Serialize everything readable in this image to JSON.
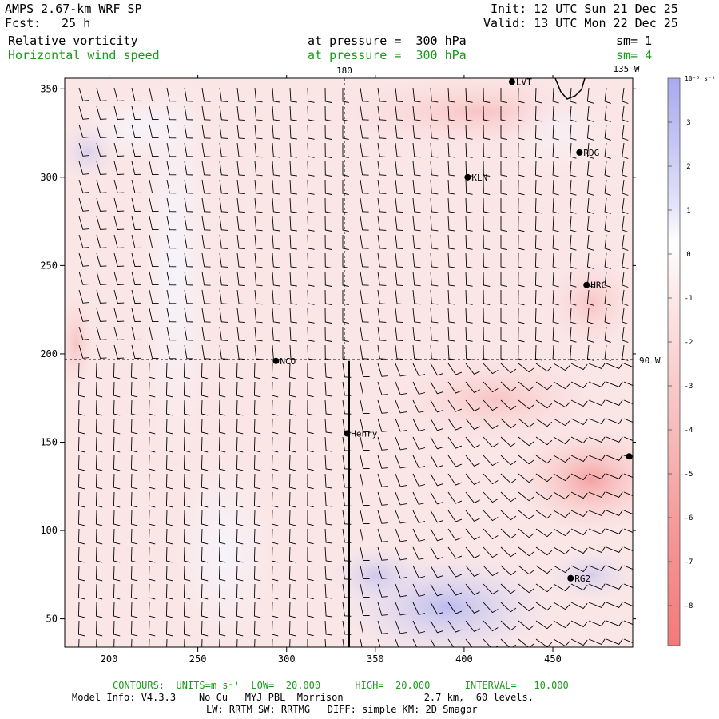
{
  "header": {
    "model": "AMPS 2.67-km WRF SP",
    "fcst_label": "Fcst:",
    "fcst_hours": "25 h",
    "init": "Init: 12 UTC Sun 21 Dec 25",
    "valid": "Valid: 13 UTC Mon 22 Dec 25",
    "field1_name": "Relative vorticity",
    "field1_level": "at pressure =  300 hPa",
    "field1_sm": "sm= 1",
    "field2_name": "Horizontal wind speed",
    "field2_level": "at pressure =  300 hPa",
    "field2_sm": "sm= 4"
  },
  "map": {
    "x_ticks": [
      200,
      250,
      300,
      350,
      400,
      450
    ],
    "y_ticks": [
      50,
      100,
      150,
      200,
      250,
      300,
      350
    ],
    "x_range": [
      175,
      495
    ],
    "y_range": [
      34,
      356
    ],
    "lon_label_180": "180",
    "lon_label_135w": "135 W",
    "lat_label_90w": "90 W",
    "cross_section_x": 335,
    "cross_section_y": [
      34,
      196
    ],
    "stations": [
      {
        "name": "NCO",
        "x": 294,
        "y": 196
      },
      {
        "name": "Henry",
        "x": 334,
        "y": 155
      },
      {
        "name": "KLN",
        "x": 402,
        "y": 300
      },
      {
        "name": "RDG",
        "x": 465,
        "y": 314
      },
      {
        "name": "HRC",
        "x": 469,
        "y": 239
      },
      {
        "name": "RG2",
        "x": 460,
        "y": 73
      },
      {
        "name": "LVT",
        "x": 427,
        "y": 354
      },
      {
        "name": "",
        "x": 493,
        "y": 142
      }
    ]
  },
  "colorbar": {
    "unit_label": "10⁻⁵ s⁻¹",
    "levels": [
      "3",
      "2",
      "1",
      "0",
      "-1",
      "-2",
      "-3",
      "-4",
      "-5",
      "-6",
      "-7",
      "-8"
    ],
    "colors": {
      "positive_strong": "#a9a9f0",
      "positive_light": "#e2e2f8",
      "zero": "#ffffff",
      "negative_light": "#fbe4e4",
      "negative_strong": "#f47a7a"
    }
  },
  "footer": {
    "contours": "CONTOURS:  UNITS=m s⁻¹  LOW=  20.000      HIGH=  20.000      INTERVAL=   10.000",
    "model_info": "Model Info: V4.3.3    No Cu   MYJ PBL  Morrison              2.7 km,  60 levels,",
    "physics": "LW: RRTM SW: RRTMG   DIFF: simple KM: 2D Smagor"
  }
}
